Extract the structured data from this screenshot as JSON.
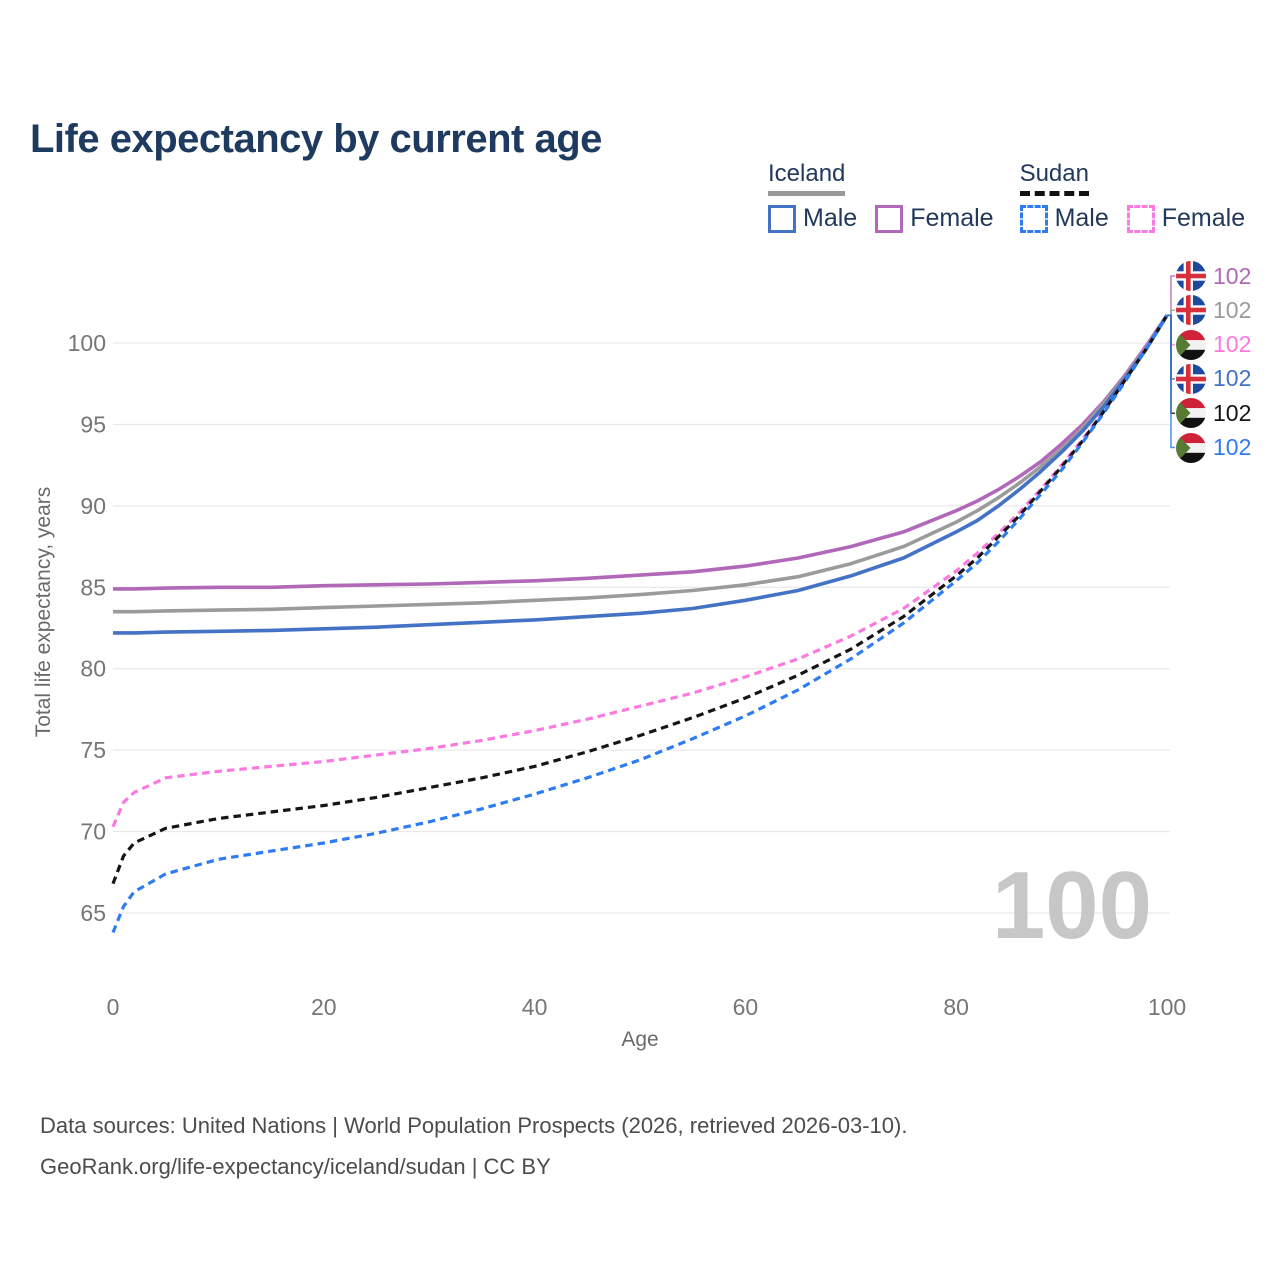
{
  "title": "Life expectancy by current age",
  "watermark_age": "100",
  "legend": {
    "groups": [
      {
        "name": "Iceland",
        "line_style": "solid",
        "items": [
          {
            "label": "Male",
            "color": "#4472c4"
          },
          {
            "label": "Female",
            "color": "#b168b8"
          }
        ]
      },
      {
        "name": "Sudan",
        "line_style": "dashed",
        "items": [
          {
            "label": "Male",
            "color": "#2e7cf2"
          },
          {
            "label": "Female",
            "color": "#fb7ae1"
          }
        ]
      }
    ]
  },
  "footer": {
    "line1": "Data sources: United Nations | World Population Prospects (2026, retrieved 2026-03-10).",
    "line2": "GeoRank.org/life-expectancy/iceland/sudan | CC BY"
  },
  "chart_data": {
    "type": "line",
    "title": "Life expectancy by current age",
    "xlabel": "Age",
    "ylabel": "Total life expectancy, years",
    "x_ticks": [
      0,
      20,
      40,
      60,
      80,
      100
    ],
    "y_ticks": [
      65,
      70,
      75,
      80,
      85,
      90,
      95,
      100
    ],
    "x_range": [
      0,
      100
    ],
    "y_gridline_range": [
      65,
      100
    ],
    "grid": "horizontal-only",
    "legend_position": "top-right",
    "ages": [
      0,
      1,
      2,
      5,
      10,
      15,
      20,
      25,
      30,
      35,
      40,
      45,
      50,
      55,
      60,
      65,
      70,
      75,
      80,
      82,
      84,
      86,
      88,
      90,
      92,
      94,
      96,
      98,
      100
    ],
    "series": [
      {
        "id": "iceland-female",
        "country": "Iceland",
        "sex": "Female",
        "color": "#b168b8",
        "dash": "solid",
        "flag_icon": "iceland-flag-icon",
        "end_label": "102",
        "values": [
          84.9,
          84.9,
          84.9,
          84.95,
          85.0,
          85.0,
          85.1,
          85.15,
          85.2,
          85.3,
          85.4,
          85.55,
          85.75,
          85.95,
          86.3,
          86.8,
          87.5,
          88.4,
          89.7,
          90.3,
          91.0,
          91.8,
          92.7,
          93.8,
          95.0,
          96.4,
          98.0,
          99.8,
          101.7
        ]
      },
      {
        "id": "iceland-both",
        "country": "Iceland",
        "sex": "Both",
        "color": "#9b9b9b",
        "dash": "solid",
        "flag_icon": "iceland-flag-icon",
        "end_label": "102",
        "values": [
          83.5,
          83.5,
          83.5,
          83.55,
          83.6,
          83.65,
          83.75,
          83.85,
          83.95,
          84.05,
          84.2,
          84.35,
          84.55,
          84.8,
          85.15,
          85.65,
          86.45,
          87.5,
          89.0,
          89.7,
          90.5,
          91.4,
          92.4,
          93.5,
          94.8,
          96.3,
          97.9,
          99.7,
          101.7
        ]
      },
      {
        "id": "sudan-female",
        "country": "Sudan",
        "sex": "Female",
        "color": "#fb7ae1",
        "dash": "dashed",
        "flag_icon": "sudan-flag-icon",
        "end_label": "102",
        "values": [
          70.3,
          71.8,
          72.4,
          73.3,
          73.7,
          74.0,
          74.3,
          74.7,
          75.1,
          75.6,
          76.2,
          76.9,
          77.7,
          78.5,
          79.5,
          80.6,
          82.0,
          83.7,
          86.0,
          87.1,
          88.3,
          89.6,
          91.0,
          92.5,
          94.1,
          95.8,
          97.7,
          99.7,
          101.7
        ]
      },
      {
        "id": "iceland-male",
        "country": "Iceland",
        "sex": "Male",
        "color": "#4472c4",
        "dash": "solid",
        "flag_icon": "iceland-flag-icon",
        "end_label": "102",
        "values": [
          82.2,
          82.2,
          82.2,
          82.25,
          82.3,
          82.35,
          82.45,
          82.55,
          82.7,
          82.85,
          83.0,
          83.2,
          83.4,
          83.7,
          84.2,
          84.8,
          85.7,
          86.8,
          88.4,
          89.1,
          90.0,
          91.0,
          92.1,
          93.3,
          94.6,
          96.1,
          97.8,
          99.6,
          101.7
        ]
      },
      {
        "id": "sudan-both",
        "country": "Sudan",
        "sex": "Both",
        "color": "#151515",
        "dash": "dashed",
        "flag_icon": "sudan-flag-icon",
        "end_label": "102",
        "values": [
          66.8,
          68.5,
          69.3,
          70.2,
          70.8,
          71.2,
          71.6,
          72.1,
          72.7,
          73.3,
          74.0,
          74.9,
          75.9,
          77.0,
          78.2,
          79.6,
          81.2,
          83.2,
          85.7,
          86.8,
          88.1,
          89.4,
          90.9,
          92.4,
          94.0,
          95.8,
          97.7,
          99.6,
          101.7
        ]
      },
      {
        "id": "sudan-male",
        "country": "Sudan",
        "sex": "Male",
        "color": "#2e7cf2",
        "dash": "dashed",
        "flag_icon": "sudan-flag-icon",
        "end_label": "102",
        "values": [
          63.8,
          65.4,
          66.3,
          67.4,
          68.3,
          68.8,
          69.3,
          69.9,
          70.6,
          71.4,
          72.3,
          73.3,
          74.4,
          75.7,
          77.1,
          78.7,
          80.6,
          82.8,
          85.4,
          86.5,
          87.8,
          89.2,
          90.7,
          92.2,
          93.9,
          95.7,
          97.6,
          99.6,
          101.7
        ]
      }
    ]
  }
}
